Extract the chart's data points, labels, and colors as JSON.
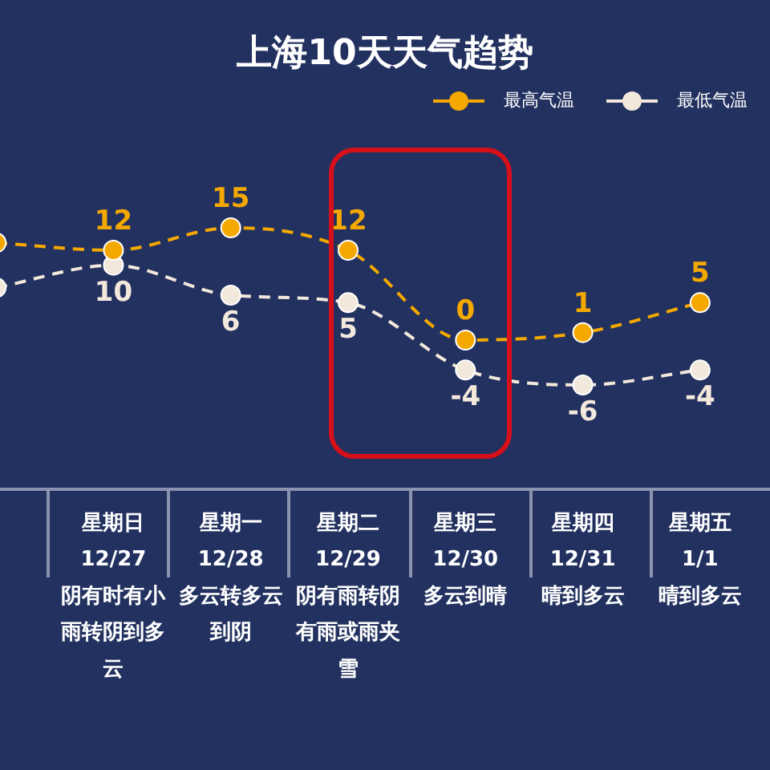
{
  "chart_data": {
    "type": "line",
    "title": "上海10天天气趋势",
    "categories": [
      null,
      "星期日\n12/27\n阴有时有小雨转阴到多云",
      "星期一\n12/28\n多云转多云到阴",
      "星期二\n12/29\n阴有雨转阴有雨或雨夹雪",
      "星期三\n12/30\n多云到晴",
      "星期四\n12/31\n晴到多云",
      "星期五\n1/1\n晴到多云"
    ],
    "series": [
      {
        "name": "最高气温",
        "color": "#f5a800",
        "values": [
          13,
          12,
          15,
          12,
          0,
          1,
          5
        ],
        "value_labels": [
          null,
          "12",
          "15",
          "12",
          "0",
          "1",
          "5"
        ]
      },
      {
        "name": "最低气温",
        "color": "#f3e8dc",
        "values": [
          7,
          10,
          6,
          5,
          -4,
          -6,
          -4
        ],
        "value_labels": [
          null,
          "10",
          "6",
          "5",
          "-4",
          "-6",
          "-4"
        ]
      }
    ],
    "tick_labels": "x",
    "grid": false,
    "legend": "top right",
    "marker": "circle",
    "line_style": "dashed"
  }
}
